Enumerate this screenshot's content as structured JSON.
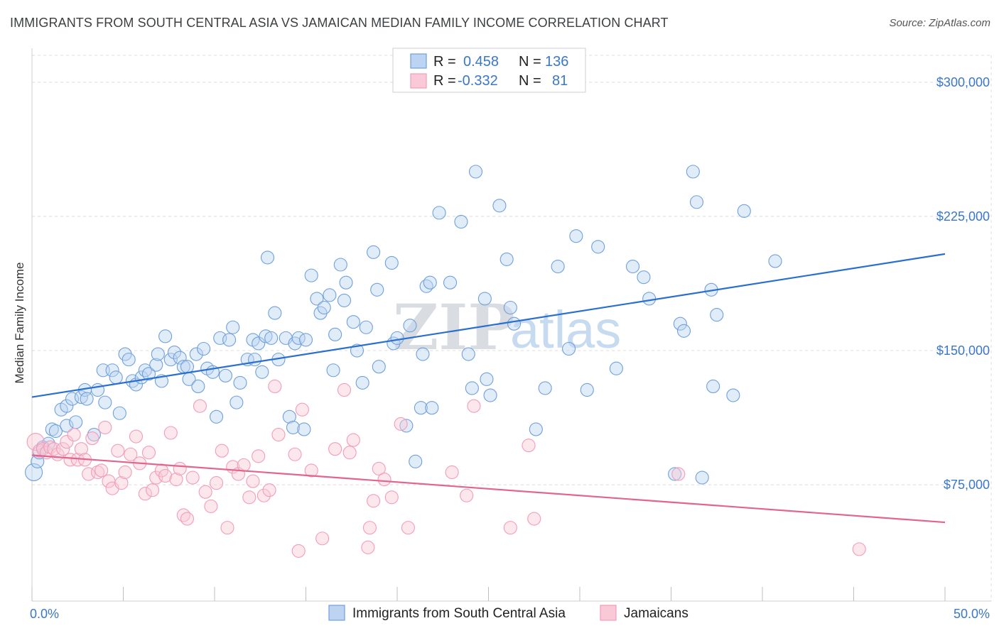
{
  "title": "IMMIGRANTS FROM SOUTH CENTRAL ASIA VS JAMAICAN MEDIAN FAMILY INCOME CORRELATION CHART",
  "source": "Source: ZipAtlas.com",
  "watermark": {
    "part1": "ZIP",
    "part2": "atlas"
  },
  "legend": {
    "r_label": "R =",
    "n_label": "N =",
    "series": [
      {
        "r": "0.458",
        "n": "136"
      },
      {
        "r": "-0.332",
        "n": "81"
      }
    ]
  },
  "chart_data": {
    "type": "scatter",
    "title": "IMMIGRANTS FROM SOUTH CENTRAL ASIA VS JAMAICAN MEDIAN FAMILY INCOME CORRELATION CHART",
    "xlabel": "",
    "ylabel": "Median Family Income",
    "xlim": [
      0,
      50
    ],
    "ylim": [
      10000,
      315000
    ],
    "x_tick_labels": [
      "0.0%",
      "50.0%"
    ],
    "y_ticks": [
      75000,
      150000,
      225000,
      300000
    ],
    "y_tick_labels": [
      "$75,000",
      "$150,000",
      "$225,000",
      "$300,000"
    ],
    "grid": true,
    "colors": {
      "blue": "#6fa0dc",
      "blue_line": "#2a6fcf",
      "pink": "#f29cb8",
      "pink_line": "#e0668f",
      "axis_text": "#3a77c8"
    },
    "series": [
      {
        "name": "Immigrants from South Central Asia",
        "color": "#6fa0dc",
        "trend": {
          "x": [
            0,
            50
          ],
          "y": [
            124000,
            204000
          ]
        },
        "points": [
          [
            0.1,
            82000
          ],
          [
            0.3,
            88000
          ],
          [
            0.4,
            93000
          ],
          [
            0.6,
            96000
          ],
          [
            0.9,
            98000
          ],
          [
            1.1,
            106000
          ],
          [
            1.3,
            105000
          ],
          [
            1.6,
            117000
          ],
          [
            1.9,
            108000
          ],
          [
            1.9,
            119000
          ],
          [
            2.2,
            123000
          ],
          [
            2.4,
            110000
          ],
          [
            2.7,
            124000
          ],
          [
            2.9,
            128000
          ],
          [
            3.0,
            123000
          ],
          [
            3.4,
            103000
          ],
          [
            3.6,
            128000
          ],
          [
            3.9,
            139000
          ],
          [
            4.0,
            121000
          ],
          [
            4.4,
            139000
          ],
          [
            4.6,
            135000
          ],
          [
            4.8,
            115000
          ],
          [
            5.1,
            148000
          ],
          [
            5.3,
            145000
          ],
          [
            5.5,
            133000
          ],
          [
            5.7,
            131000
          ],
          [
            6.0,
            135000
          ],
          [
            6.2,
            139000
          ],
          [
            6.4,
            137000
          ],
          [
            6.8,
            142000
          ],
          [
            6.9,
            148000
          ],
          [
            7.1,
            133000
          ],
          [
            7.3,
            158000
          ],
          [
            7.6,
            145000
          ],
          [
            7.8,
            149000
          ],
          [
            8.1,
            146000
          ],
          [
            8.3,
            141000
          ],
          [
            8.5,
            141000
          ],
          [
            8.6,
            134000
          ],
          [
            9.0,
            148000
          ],
          [
            9.1,
            130000
          ],
          [
            9.4,
            151000
          ],
          [
            9.6,
            140000
          ],
          [
            9.9,
            138000
          ],
          [
            10.1,
            113000
          ],
          [
            10.3,
            157000
          ],
          [
            10.6,
            136000
          ],
          [
            10.8,
            156000
          ],
          [
            11.0,
            163000
          ],
          [
            11.2,
            121000
          ],
          [
            11.4,
            132000
          ],
          [
            11.8,
            145000
          ],
          [
            12.1,
            156000
          ],
          [
            12.2,
            145000
          ],
          [
            12.4,
            154000
          ],
          [
            12.6,
            138000
          ],
          [
            12.8,
            158000
          ],
          [
            12.9,
            202000
          ],
          [
            13.1,
            157000
          ],
          [
            13.3,
            171000
          ],
          [
            13.5,
            145000
          ],
          [
            13.9,
            157000
          ],
          [
            14.1,
            113000
          ],
          [
            14.3,
            107000
          ],
          [
            14.4,
            154000
          ],
          [
            14.6,
            157000
          ],
          [
            14.9,
            106000
          ],
          [
            15.0,
            156000
          ],
          [
            15.3,
            192000
          ],
          [
            15.6,
            179000
          ],
          [
            15.8,
            171000
          ],
          [
            16.0,
            174000
          ],
          [
            16.3,
            181000
          ],
          [
            16.5,
            139000
          ],
          [
            16.6,
            159000
          ],
          [
            16.9,
            198000
          ],
          [
            17.1,
            178000
          ],
          [
            17.2,
            188000
          ],
          [
            17.6,
            166000
          ],
          [
            17.8,
            150000
          ],
          [
            18.1,
            132000
          ],
          [
            18.3,
            163000
          ],
          [
            18.7,
            205000
          ],
          [
            18.9,
            184000
          ],
          [
            19.0,
            141000
          ],
          [
            19.7,
            199000
          ],
          [
            19.8,
            154000
          ],
          [
            20.0,
            157000
          ],
          [
            20.5,
            108000
          ],
          [
            20.7,
            164000
          ],
          [
            21.0,
            88000
          ],
          [
            21.3,
            118000
          ],
          [
            21.4,
            148000
          ],
          [
            21.6,
            186000
          ],
          [
            21.8,
            188000
          ],
          [
            21.9,
            118000
          ],
          [
            22.3,
            227000
          ],
          [
            22.9,
            188000
          ],
          [
            23.5,
            222000
          ],
          [
            23.9,
            148000
          ],
          [
            24.1,
            129000
          ],
          [
            24.3,
            250000
          ],
          [
            24.8,
            179000
          ],
          [
            24.9,
            134000
          ],
          [
            25.1,
            125000
          ],
          [
            25.6,
            231000
          ],
          [
            26.0,
            201000
          ],
          [
            26.2,
            174000
          ],
          [
            26.4,
            165000
          ],
          [
            27.6,
            106000
          ],
          [
            28.1,
            129000
          ],
          [
            28.8,
            197000
          ],
          [
            29.4,
            151000
          ],
          [
            29.8,
            214000
          ],
          [
            30.4,
            128000
          ],
          [
            31.0,
            208000
          ],
          [
            32.0,
            140000
          ],
          [
            32.9,
            197000
          ],
          [
            33.5,
            191000
          ],
          [
            33.8,
            179000
          ],
          [
            35.2,
            81000
          ],
          [
            35.5,
            165000
          ],
          [
            35.7,
            161000
          ],
          [
            36.2,
            250000
          ],
          [
            36.4,
            233000
          ],
          [
            36.7,
            79000
          ],
          [
            37.2,
            184000
          ],
          [
            37.3,
            130000
          ],
          [
            37.5,
            170000
          ],
          [
            38.4,
            125000
          ],
          [
            39.0,
            228000
          ],
          [
            40.7,
            200000
          ]
        ]
      },
      {
        "name": "Jamaicans",
        "color": "#f29cb8",
        "trend": {
          "x": [
            0,
            50
          ],
          "y": [
            91500,
            54000
          ]
        },
        "points": [
          [
            0.2,
            99000
          ],
          [
            0.4,
            94000
          ],
          [
            0.6,
            95000
          ],
          [
            0.8,
            93000
          ],
          [
            1.0,
            96000
          ],
          [
            1.2,
            95000
          ],
          [
            1.4,
            92000
          ],
          [
            1.7,
            95000
          ],
          [
            1.9,
            99000
          ],
          [
            2.1,
            89000
          ],
          [
            2.3,
            103000
          ],
          [
            2.5,
            89000
          ],
          [
            2.7,
            95000
          ],
          [
            2.9,
            89000
          ],
          [
            3.1,
            81000
          ],
          [
            3.3,
            101000
          ],
          [
            3.6,
            82000
          ],
          [
            3.8,
            83000
          ],
          [
            4.0,
            107000
          ],
          [
            4.2,
            77000
          ],
          [
            4.4,
            73000
          ],
          [
            4.7,
            94000
          ],
          [
            4.9,
            76000
          ],
          [
            5.1,
            82000
          ],
          [
            5.4,
            92000
          ],
          [
            5.7,
            102000
          ],
          [
            5.9,
            87000
          ],
          [
            6.2,
            70000
          ],
          [
            6.4,
            93000
          ],
          [
            6.6,
            72000
          ],
          [
            6.8,
            79000
          ],
          [
            7.1,
            83000
          ],
          [
            7.3,
            80000
          ],
          [
            7.6,
            104000
          ],
          [
            7.9,
            78000
          ],
          [
            8.1,
            84000
          ],
          [
            8.3,
            58000
          ],
          [
            8.5,
            56000
          ],
          [
            8.8,
            79000
          ],
          [
            9.2,
            119000
          ],
          [
            9.5,
            71000
          ],
          [
            9.8,
            63000
          ],
          [
            10.1,
            76000
          ],
          [
            10.4,
            94000
          ],
          [
            10.7,
            51000
          ],
          [
            11.0,
            85000
          ],
          [
            11.3,
            81000
          ],
          [
            11.6,
            86000
          ],
          [
            11.9,
            68000
          ],
          [
            12.1,
            77000
          ],
          [
            12.4,
            91000
          ],
          [
            12.7,
            69000
          ],
          [
            13.0,
            72000
          ],
          [
            13.3,
            130000
          ],
          [
            13.5,
            103000
          ],
          [
            14.4,
            92000
          ],
          [
            14.6,
            38000
          ],
          [
            14.8,
            117000
          ],
          [
            15.3,
            83000
          ],
          [
            15.9,
            45000
          ],
          [
            16.6,
            95000
          ],
          [
            17.1,
            128000
          ],
          [
            17.4,
            93000
          ],
          [
            17.6,
            100000
          ],
          [
            18.4,
            40000
          ],
          [
            18.5,
            51000
          ],
          [
            18.7,
            66000
          ],
          [
            19.0,
            84000
          ],
          [
            19.3,
            78000
          ],
          [
            19.7,
            68000
          ],
          [
            20.2,
            109000
          ],
          [
            20.6,
            51000
          ],
          [
            23.0,
            82000
          ],
          [
            23.8,
            69000
          ],
          [
            24.2,
            119000
          ],
          [
            26.2,
            51000
          ],
          [
            27.2,
            97000
          ],
          [
            27.5,
            56000
          ],
          [
            35.4,
            81000
          ],
          [
            45.3,
            39000
          ]
        ]
      }
    ]
  },
  "bottom_legend": {
    "items": [
      "Immigrants from South Central Asia",
      "Jamaicans"
    ]
  }
}
